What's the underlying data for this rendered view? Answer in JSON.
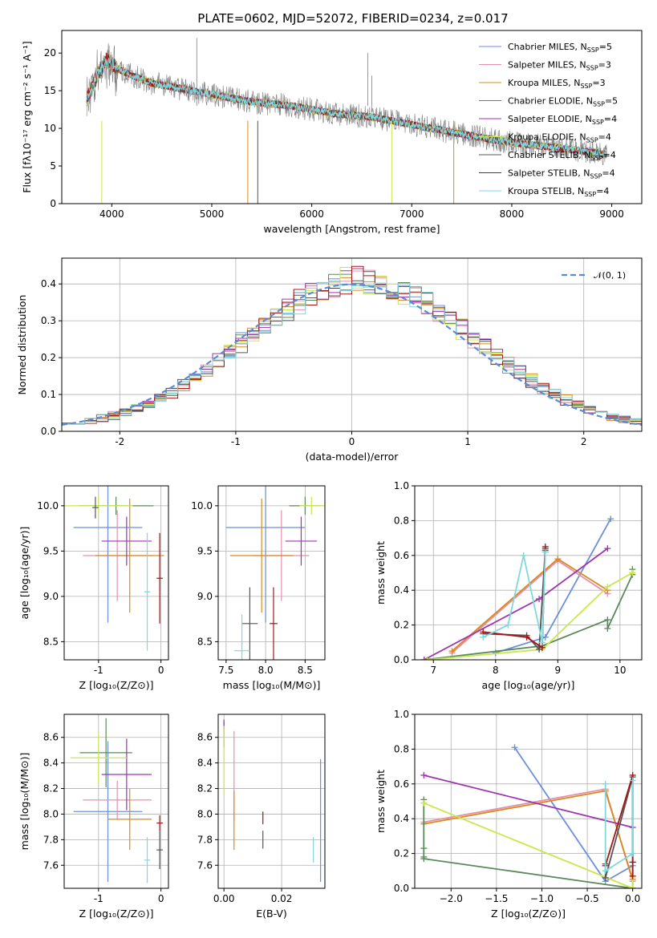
{
  "figure": {
    "title": "PLATE=0602, MJD=52072, FIBERID=0234, z=0.017"
  },
  "models": [
    {
      "name": "Chabrier MILES, N",
      "sub": "SSP",
      "tail": "=5",
      "color": "#6a8fdb"
    },
    {
      "name": "Salpeter MILES, N",
      "sub": "SSP",
      "tail": "=3",
      "color": "#e58fae"
    },
    {
      "name": "Kroupa MILES, N",
      "sub": "SSP",
      "tail": "=3",
      "color": "#d98a1c"
    },
    {
      "name": "Chabrier ELODIE, N",
      "sub": "SSP",
      "tail": "=5",
      "color": "#5a8a5a"
    },
    {
      "name": "Salpeter ELODIE, N",
      "sub": "SSP",
      "tail": "=4",
      "color": "#a033b0"
    },
    {
      "name": "Kroupa ELODIE, N",
      "sub": "SSP",
      "tail": "=4",
      "color": "#c8e84a"
    },
    {
      "name": "Chabrier STELIB, N",
      "sub": "SSP",
      "tail": "=4",
      "color": "#555555"
    },
    {
      "name": "Salpeter STELIB, N",
      "sub": "SSP",
      "tail": "=4",
      "color": "#a01818"
    },
    {
      "name": "Kroupa STELIB, N",
      "sub": "SSP",
      "tail": "=4",
      "color": "#7fd8dc"
    }
  ],
  "chart_data": [
    {
      "id": "spectrum",
      "type": "line",
      "xlabel": "wavelength [Angstrom, rest frame]",
      "ylabel": "Flux [fλ10⁻¹⁷ erg cm⁻² s⁻¹ A⁻¹]",
      "xlim": [
        3500,
        9300
      ],
      "ylim": [
        0,
        23
      ],
      "xticks": [
        4000,
        5000,
        6000,
        7000,
        8000,
        9000
      ],
      "yticks": [
        0,
        5,
        10,
        15,
        20
      ],
      "continuum_x": [
        3750,
        3850,
        3950,
        4050,
        4200,
        4400,
        4600,
        4800,
        5000,
        5400,
        5800,
        6200,
        6600,
        7000,
        7400,
        7800,
        8200,
        8600,
        8950
      ],
      "continuum_y": [
        14,
        17,
        19,
        18,
        17,
        16,
        15.5,
        15,
        14.5,
        13.5,
        13,
        12,
        11.5,
        10.5,
        9.5,
        8.5,
        7.8,
        7.2,
        6.5
      ],
      "legend_position": "upper-right"
    },
    {
      "id": "residuals",
      "type": "histogram",
      "xlabel": "(data-model)/error",
      "ylabel": "Normed distribution",
      "xlim": [
        -2.5,
        2.5
      ],
      "ylim": [
        0,
        0.47
      ],
      "xticks": [
        -2,
        -1,
        0,
        1,
        2
      ],
      "yticks": [
        0.0,
        0.1,
        0.2,
        0.3,
        0.4
      ],
      "reference_label": "𝒩(0, 1)",
      "reference_color": "#5b8ad6",
      "legend_position": "upper-right"
    },
    {
      "id": "age-vs-Z",
      "type": "errorbar",
      "xlabel": "Z [log₁₀(Z/Z⊙)]",
      "ylabel": "age  [log₁₀(age/yr)]",
      "xlim": [
        -1.55,
        0.12
      ],
      "ylim": [
        8.3,
        10.22
      ],
      "xticks": [
        -1,
        0
      ],
      "yticks": [
        8.5,
        9.0,
        9.5,
        10.0
      ],
      "points": [
        {
          "m": 0,
          "x": -0.85,
          "y": 9.76,
          "xerr": 0.55,
          "yerr": 1.05
        },
        {
          "m": 1,
          "x": -0.7,
          "y": 9.45,
          "xerr": 0.55,
          "yerr": 0.5
        },
        {
          "m": 2,
          "x": -0.5,
          "y": 9.45,
          "xerr": 0.55,
          "yerr": 0.63
        },
        {
          "m": 3,
          "x": -0.72,
          "y": 10.0,
          "xerr": 0.6,
          "yerr": 0.1
        },
        {
          "m": 4,
          "x": -0.55,
          "y": 9.61,
          "xerr": 0.4,
          "yerr": 0.27
        },
        {
          "m": 5,
          "x": -1.0,
          "y": 10.0,
          "xerr": 0.55,
          "yerr": 0.1
        },
        {
          "m": 6,
          "x": -1.05,
          "y": 9.98,
          "xerr": 0.05,
          "yerr": 0.12
        },
        {
          "m": 7,
          "x": -0.02,
          "y": 9.2,
          "xerr": 0.05,
          "yerr": 0.5
        },
        {
          "m": 8,
          "x": -0.22,
          "y": 9.05,
          "xerr": 0.05,
          "yerr": 0.65
        }
      ]
    },
    {
      "id": "age-vs-mass",
      "type": "errorbar",
      "xlabel": "mass [log₁₀(M/M⊙)]",
      "ylabel": "",
      "xlim": [
        7.4,
        8.75
      ],
      "ylim": [
        8.3,
        10.22
      ],
      "xticks": [
        7.5,
        8.0,
        8.5
      ],
      "yticks": [
        8.5,
        9.0,
        9.5,
        10.0
      ],
      "points": [
        {
          "m": 0,
          "x": 8.0,
          "y": 9.76,
          "xerr": 0.5,
          "yerr": 1.05
        },
        {
          "m": 1,
          "x": 8.2,
          "y": 9.45,
          "xerr": 0.35,
          "yerr": 0.5
        },
        {
          "m": 2,
          "x": 7.95,
          "y": 9.45,
          "xerr": 0.4,
          "yerr": 0.63
        },
        {
          "m": 3,
          "x": 8.5,
          "y": 10.0,
          "xerr": 0.2,
          "yerr": 0.1
        },
        {
          "m": 4,
          "x": 8.45,
          "y": 9.61,
          "xerr": 0.2,
          "yerr": 0.27
        },
        {
          "m": 5,
          "x": 8.58,
          "y": 10.0,
          "xerr": 0.15,
          "yerr": 0.1
        },
        {
          "m": 6,
          "x": 7.8,
          "y": 8.7,
          "xerr": 0.1,
          "yerr": 0.4
        },
        {
          "m": 7,
          "x": 8.1,
          "y": 8.7,
          "xerr": 0.05,
          "yerr": 0.4
        },
        {
          "m": 8,
          "x": 7.7,
          "y": 8.4,
          "xerr": 0.1,
          "yerr": 0.4
        }
      ]
    },
    {
      "id": "weight-vs-age",
      "type": "line",
      "xlabel": "age  [log₁₀(age/yr)]",
      "ylabel": "mass weight",
      "xlim": [
        6.7,
        10.35
      ],
      "ylim": [
        0,
        1.0
      ],
      "xticks": [
        7,
        8,
        9,
        10
      ],
      "yticks": [
        0.0,
        0.2,
        0.4,
        0.6,
        0.8,
        1.0
      ],
      "series": [
        {
          "m": 0,
          "x": [
            8.0,
            8.8,
            9.85
          ],
          "y": [
            0.04,
            0.13,
            0.81
          ]
        },
        {
          "m": 1,
          "x": [
            7.3,
            9.0,
            9.8
          ],
          "y": [
            0.04,
            0.57,
            0.38
          ]
        },
        {
          "m": 2,
          "x": [
            7.3,
            9.0,
            9.8
          ],
          "y": [
            0.05,
            0.58,
            0.4
          ]
        },
        {
          "m": 3,
          "x": [
            6.85,
            8.75,
            9.8,
            9.8,
            10.2,
            10.2
          ],
          "y": [
            0.0,
            0.08,
            0.23,
            0.18,
            0.49,
            0.52
          ]
        },
        {
          "m": 4,
          "x": [
            6.85,
            8.7,
            9.8
          ],
          "y": [
            0.0,
            0.35,
            0.64
          ]
        },
        {
          "m": 5,
          "x": [
            6.9,
            8.75,
            9.8,
            10.2
          ],
          "y": [
            0.0,
            0.06,
            0.42,
            0.5
          ]
        },
        {
          "m": 6,
          "x": [
            7.8,
            8.5,
            8.7,
            8.8,
            8.8
          ],
          "y": [
            0.15,
            0.14,
            0.06,
            0.64,
            0.63
          ]
        },
        {
          "m": 7,
          "x": [
            7.8,
            8.5,
            8.75,
            8.8,
            8.8
          ],
          "y": [
            0.16,
            0.13,
            0.07,
            0.65,
            0.62
          ]
        },
        {
          "m": 8,
          "x": [
            7.8,
            8.2,
            8.45,
            8.75,
            8.8
          ],
          "y": [
            0.13,
            0.2,
            0.6,
            0.1,
            0.62
          ]
        }
      ]
    },
    {
      "id": "mass-vs-Z",
      "type": "errorbar",
      "xlabel": "Z [log₁₀(Z/Z⊙)]",
      "ylabel": "mass [log₁₀(M/M⊙)]",
      "xlim": [
        -1.55,
        0.12
      ],
      "ylim": [
        7.42,
        8.78
      ],
      "xticks": [
        -1,
        0
      ],
      "yticks": [
        7.6,
        7.8,
        8.0,
        8.2,
        8.4,
        8.6
      ],
      "points": [
        {
          "m": 0,
          "x": -0.85,
          "y": 8.02,
          "xerr": 0.55,
          "yerr": 0.55
        },
        {
          "m": 1,
          "x": -0.7,
          "y": 8.11,
          "xerr": 0.55,
          "yerr": 0.15
        },
        {
          "m": 2,
          "x": -0.5,
          "y": 7.96,
          "xerr": 0.35,
          "yerr": 0.24
        },
        {
          "m": 3,
          "x": -0.88,
          "y": 8.48,
          "xerr": 0.42,
          "yerr": 0.27
        },
        {
          "m": 4,
          "x": -0.55,
          "y": 8.31,
          "xerr": 0.4,
          "yerr": 0.28
        },
        {
          "m": 5,
          "x": -1.0,
          "y": 8.44,
          "xerr": 0.45,
          "yerr": 0.2
        },
        {
          "m": 6,
          "x": -0.02,
          "y": 7.72,
          "xerr": 0.05,
          "yerr": 0.15
        },
        {
          "m": 7,
          "x": -0.02,
          "y": 7.93,
          "xerr": 0.05,
          "yerr": 0.06
        },
        {
          "m": 8,
          "x": -0.22,
          "y": 7.64,
          "xerr": 0.05,
          "yerr": 0.18
        }
      ]
    },
    {
      "id": "mass-vs-EBV",
      "type": "errorbar",
      "xlabel": "E(B-V)",
      "ylabel": "",
      "xlim": [
        -0.002,
        0.035
      ],
      "ylim": [
        7.42,
        8.78
      ],
      "xticks": [
        0.0,
        0.02
      ],
      "yticks": [
        7.6,
        7.8,
        8.0,
        8.2,
        8.4,
        8.6
      ],
      "points": [
        {
          "m": 0,
          "x": 0.0335,
          "y": 7.95,
          "xerr": 0,
          "yerr": 0.48
        },
        {
          "m": 1,
          "x": 0.0035,
          "y": 8.3,
          "xerr": 0,
          "yerr": 0.35
        },
        {
          "m": 2,
          "x": 0.0035,
          "y": 7.95,
          "xerr": 0,
          "yerr": 0.23
        },
        {
          "m": 3,
          "x": 0.0,
          "y": 8.62,
          "xerr": 0,
          "yerr": 0.1
        },
        {
          "m": 4,
          "x": 0.0,
          "y": 8.7,
          "xerr": 0,
          "yerr": 0.04
        },
        {
          "m": 5,
          "x": 0.0,
          "y": 8.42,
          "xerr": 0,
          "yerr": 0.27
        },
        {
          "m": 6,
          "x": 0.0135,
          "y": 7.8,
          "xerr": 0,
          "yerr": 0.07
        },
        {
          "m": 7,
          "x": 0.0135,
          "y": 7.97,
          "xerr": 0,
          "yerr": 0.05
        },
        {
          "m": 8,
          "x": 0.031,
          "y": 7.72,
          "xerr": 0,
          "yerr": 0.1
        }
      ]
    },
    {
      "id": "weight-vs-Z",
      "type": "line",
      "xlabel": "Z [log₁₀(Z/Z⊙)]",
      "ylabel": "mass weight",
      "xlim": [
        -2.4,
        0.1
      ],
      "ylim": [
        0,
        1.0
      ],
      "xticks": [
        -2.0,
        -1.5,
        -1.0,
        -0.5,
        0.0
      ],
      "yticks": [
        0.0,
        0.2,
        0.4,
        0.6,
        0.8,
        1.0
      ],
      "series": [
        {
          "m": 0,
          "x": [
            -1.3,
            -0.3,
            0.0,
            0.0
          ],
          "y": [
            0.81,
            0.04,
            0.13,
            0.0
          ]
        },
        {
          "m": 1,
          "x": [
            -2.3,
            -0.3,
            0.0
          ],
          "y": [
            0.38,
            0.57,
            0.04
          ]
        },
        {
          "m": 2,
          "x": [
            -2.3,
            -0.3,
            0.0
          ],
          "y": [
            0.37,
            0.56,
            0.05
          ]
        },
        {
          "m": 3,
          "x": [
            -2.3,
            -2.3,
            -2.3,
            -2.3,
            0.0
          ],
          "y": [
            0.51,
            0.18,
            0.23,
            0.17,
            0.0
          ]
        },
        {
          "m": 4,
          "x": [
            -2.3,
            0.0
          ],
          "y": [
            0.65,
            0.35
          ]
        },
        {
          "m": 5,
          "x": [
            -2.3,
            0.0,
            0.0
          ],
          "y": [
            0.49,
            0.0,
            0.06
          ]
        },
        {
          "m": 6,
          "x": [
            -0.3,
            -0.3,
            0.0,
            0.0
          ],
          "y": [
            0.14,
            0.06,
            0.64,
            0.15
          ]
        },
        {
          "m": 7,
          "x": [
            -0.3,
            0.0,
            0.0,
            0.0
          ],
          "y": [
            0.13,
            0.65,
            0.15,
            0.07
          ]
        },
        {
          "m": 8,
          "x": [
            -0.3,
            -0.3,
            0.0,
            0.0
          ],
          "y": [
            0.6,
            0.1,
            0.2,
            0.62
          ]
        }
      ]
    }
  ]
}
